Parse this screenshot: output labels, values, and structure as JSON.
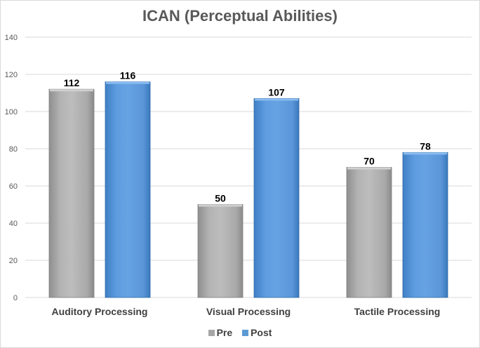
{
  "chart_data": {
    "type": "bar",
    "title": "ICAN (Perceptual Abilities)",
    "categories": [
      "Auditory Processing",
      "Visual Processing",
      "Tactile Processing"
    ],
    "series": [
      {
        "name": "Pre",
        "values": [
          112,
          50,
          70
        ],
        "color": "#a6a6a6"
      },
      {
        "name": "Post",
        "values": [
          116,
          107,
          78
        ],
        "color": "#5b9bd5"
      }
    ],
    "ylim": [
      0,
      140
    ],
    "yticks": [
      0,
      20,
      40,
      60,
      80,
      100,
      120,
      140
    ],
    "grid": true,
    "legend": "bottom",
    "data_labels": true
  }
}
